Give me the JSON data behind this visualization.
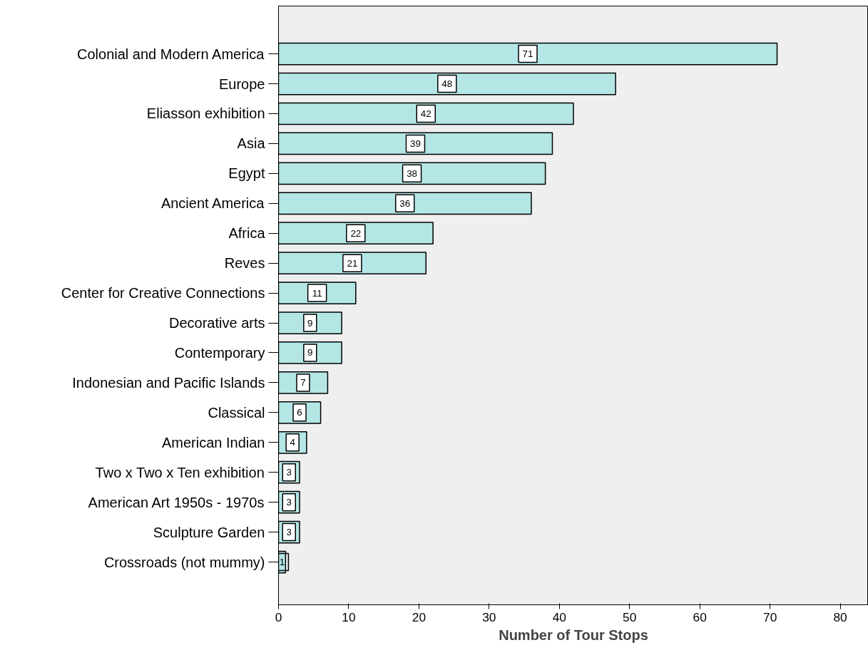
{
  "chart_data": {
    "type": "bar",
    "orientation": "horizontal",
    "xlabel": "Number of Tour Stops",
    "categories": [
      "Colonial and Modern America",
      "Europe",
      "Eliasson exhibition",
      "Asia",
      "Egypt",
      "Ancient America",
      "Africa",
      "Reves",
      "Center for Creative Connections",
      "Decorative arts",
      "Contemporary",
      "Indonesian and Pacific Islands",
      "Classical",
      "American Indian",
      "Two x Two x Ten exhibition",
      "American Art 1950s - 1970s",
      "Sculpture Garden",
      "Crossroads (not mummy)"
    ],
    "values": [
      71,
      48,
      42,
      39,
      38,
      36,
      22,
      21,
      11,
      9,
      9,
      7,
      6,
      4,
      3,
      3,
      3,
      1
    ],
    "color": "#b4e6e6",
    "xlim": [
      0,
      84
    ],
    "xticks": [
      0,
      10,
      20,
      30,
      40,
      50,
      60,
      70,
      80
    ],
    "grid": false,
    "data_labels": true
  }
}
